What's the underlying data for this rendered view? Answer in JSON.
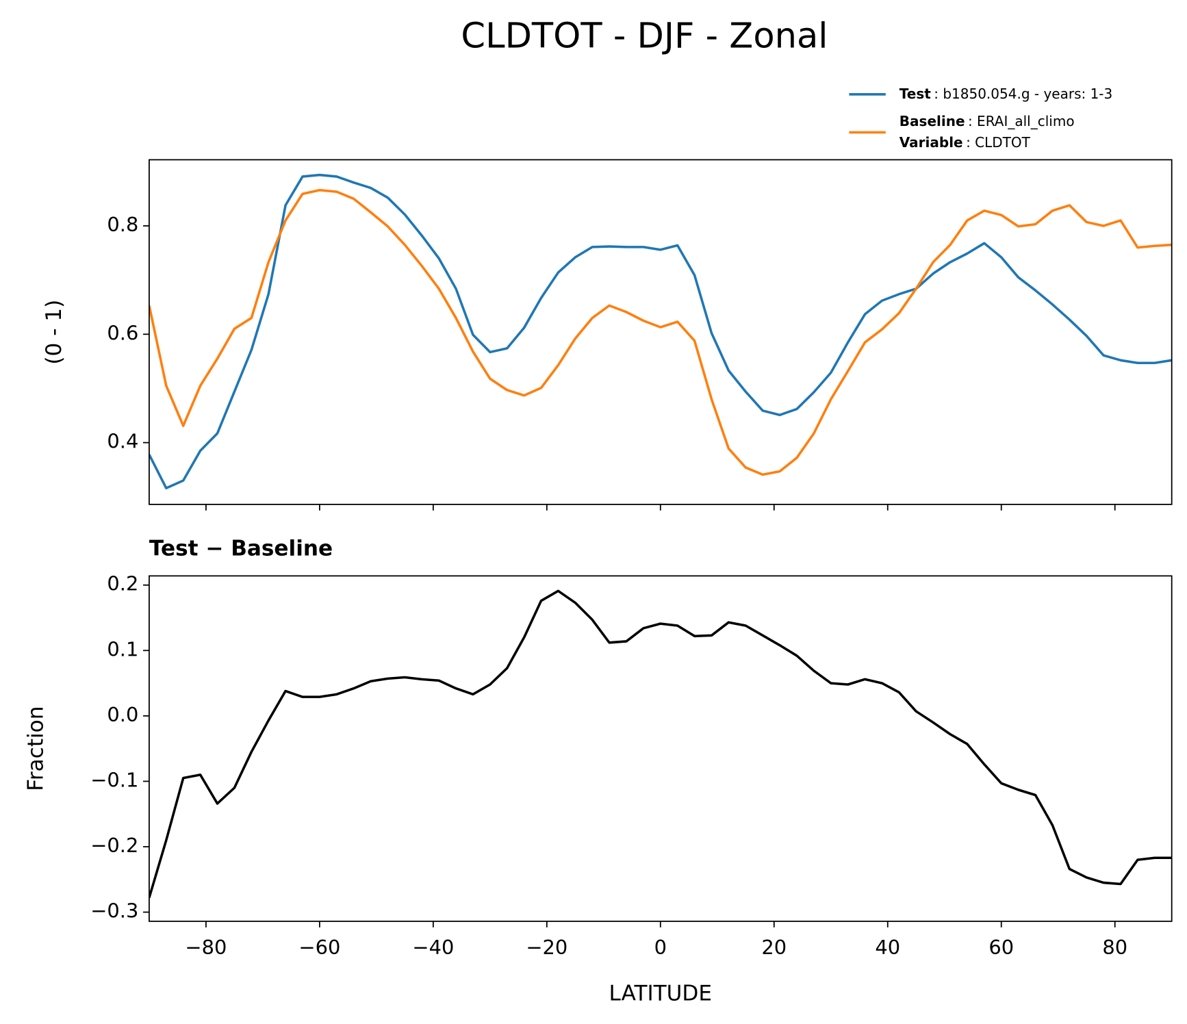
{
  "title": "CLDTOT - DJF - Zonal",
  "chart_data": [
    {
      "type": "line",
      "ylabel": "(0 - 1)",
      "x": [
        -90,
        -87,
        -84,
        -81,
        -78,
        -75,
        -72,
        -69,
        -66,
        -63,
        -60,
        -57,
        -54,
        -51,
        -48,
        -45,
        -42,
        -39,
        -36,
        -33,
        -30,
        -27,
        -24,
        -21,
        -18,
        -15,
        -12,
        -9,
        -6,
        -3,
        0,
        3,
        6,
        9,
        12,
        15,
        18,
        21,
        24,
        27,
        30,
        33,
        36,
        39,
        42,
        45,
        48,
        51,
        54,
        57,
        60,
        63,
        66,
        69,
        72,
        75,
        78,
        81,
        84,
        87,
        90
      ],
      "series": [
        {
          "name": "Test",
          "label": ": b1850.054.g - years: 1-3",
          "color": "#1f77b4",
          "values": [
            0.378,
            0.316,
            0.33,
            0.385,
            0.417,
            0.494,
            0.571,
            0.674,
            0.838,
            0.891,
            0.894,
            0.891,
            0.88,
            0.87,
            0.852,
            0.821,
            0.782,
            0.74,
            0.684,
            0.599,
            0.567,
            0.574,
            0.612,
            0.667,
            0.714,
            0.742,
            0.761,
            0.762,
            0.761,
            0.761,
            0.756,
            0.764,
            0.709,
            0.602,
            0.533,
            0.494,
            0.459,
            0.451,
            0.462,
            0.493,
            0.529,
            0.585,
            0.637,
            0.662,
            0.674,
            0.684,
            0.712,
            0.733,
            0.749,
            0.768,
            0.742,
            0.705,
            0.681,
            0.655,
            0.627,
            0.597,
            0.561,
            0.552,
            0.547,
            0.547,
            0.552
          ]
        },
        {
          "name": "Baseline",
          "label": ": ERAI_all_climo",
          "color": "#ff7f0e",
          "values": [
            0.653,
            0.505,
            0.431,
            0.505,
            0.555,
            0.61,
            0.63,
            0.733,
            0.81,
            0.859,
            0.866,
            0.863,
            0.85,
            0.825,
            0.799,
            0.765,
            0.726,
            0.684,
            0.63,
            0.568,
            0.518,
            0.497,
            0.487,
            0.501,
            0.543,
            0.592,
            0.63,
            0.653,
            0.641,
            0.625,
            0.613,
            0.623,
            0.588,
            0.48,
            0.389,
            0.354,
            0.341,
            0.347,
            0.372,
            0.417,
            0.48,
            0.532,
            0.585,
            0.609,
            0.639,
            0.684,
            0.733,
            0.765,
            0.81,
            0.828,
            0.82,
            0.799,
            0.803,
            0.828,
            0.838,
            0.807,
            0.8,
            0.81,
            0.76,
            0.763,
            0.765
          ]
        }
      ],
      "variable_name": "Variable",
      "variable_label": ": CLDTOT",
      "xlim": [
        -90,
        90
      ],
      "xticks": [
        -80,
        -60,
        -40,
        -20,
        0,
        20,
        40,
        60,
        80
      ],
      "ylim": [
        0.286,
        0.922
      ],
      "yticks": [
        0.4,
        0.6,
        0.8
      ]
    },
    {
      "type": "line",
      "title": "Test − Baseline",
      "xlabel": "LATITUDE",
      "ylabel": "Fraction",
      "x": [
        -90,
        -87,
        -84,
        -81,
        -78,
        -75,
        -72,
        -69,
        -66,
        -63,
        -60,
        -57,
        -54,
        -51,
        -48,
        -45,
        -42,
        -39,
        -36,
        -33,
        -30,
        -27,
        -24,
        -21,
        -18,
        -15,
        -12,
        -9,
        -6,
        -3,
        0,
        3,
        6,
        9,
        12,
        15,
        18,
        21,
        24,
        27,
        30,
        33,
        36,
        39,
        42,
        45,
        48,
        51,
        54,
        57,
        60,
        63,
        66,
        69,
        72,
        75,
        78,
        81,
        84,
        87,
        90
      ],
      "series": [
        {
          "color": "#000000",
          "values": [
            -0.278,
            -0.19,
            -0.095,
            -0.09,
            -0.134,
            -0.11,
            -0.055,
            -0.007,
            0.038,
            0.029,
            0.029,
            0.033,
            0.042,
            0.053,
            0.057,
            0.059,
            0.056,
            0.054,
            0.042,
            0.033,
            0.048,
            0.073,
            0.12,
            0.176,
            0.191,
            0.173,
            0.147,
            0.112,
            0.114,
            0.134,
            0.141,
            0.138,
            0.122,
            0.123,
            0.143,
            0.138,
            0.123,
            0.108,
            0.092,
            0.069,
            0.05,
            0.048,
            0.056,
            0.05,
            0.036,
            0.007,
            -0.01,
            -0.028,
            -0.043,
            -0.074,
            -0.103,
            -0.113,
            -0.121,
            -0.167,
            -0.234,
            -0.247,
            -0.255,
            -0.257,
            -0.22,
            -0.217,
            -0.217
          ]
        }
      ],
      "xlim": [
        -90,
        90
      ],
      "xticks": [
        {
          "value": -80,
          "label": "−80"
        },
        {
          "value": -60,
          "label": "−60"
        },
        {
          "value": -40,
          "label": "−40"
        },
        {
          "value": -20,
          "label": "−20"
        },
        0,
        20,
        40,
        60,
        80
      ],
      "ylim": [
        -0.314,
        0.214
      ],
      "yticks": [
        0.2,
        0.1,
        {
          "value": 0,
          "label": "0.0"
        },
        {
          "value": -0.1,
          "label": "−0.1"
        },
        {
          "value": -0.2,
          "label": "−0.2"
        },
        {
          "value": -0.3,
          "label": "−0.3"
        }
      ]
    }
  ]
}
